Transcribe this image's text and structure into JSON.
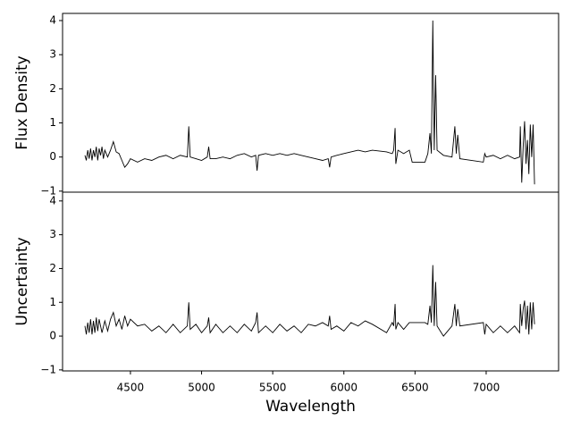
{
  "chart_data": [
    {
      "type": "line",
      "ylabel": "Flux Density",
      "color": "#000000",
      "xlim": [
        4023,
        7509
      ],
      "ylim": [
        -1.03,
        4.21
      ],
      "yticks": [
        {
          "value": -1,
          "label": "−1"
        },
        0,
        1,
        2,
        3,
        4
      ],
      "x": [
        4180,
        4190,
        4200,
        4210,
        4220,
        4230,
        4240,
        4250,
        4260,
        4270,
        4280,
        4290,
        4300,
        4310,
        4320,
        4340,
        4360,
        4380,
        4400,
        4420,
        4440,
        4460,
        4480,
        4500,
        4550,
        4600,
        4650,
        4700,
        4750,
        4800,
        4850,
        4900,
        4910,
        4920,
        4960,
        5000,
        5040,
        5050,
        5060,
        5100,
        5150,
        5200,
        5250,
        5300,
        5350,
        5380,
        5390,
        5400,
        5450,
        5500,
        5550,
        5600,
        5650,
        5700,
        5750,
        5800,
        5850,
        5890,
        5900,
        5910,
        5950,
        6000,
        6050,
        6100,
        6150,
        6200,
        6300,
        6340,
        6350,
        6360,
        6365,
        6380,
        6420,
        6460,
        6480,
        6570,
        6590,
        6605,
        6615,
        6625,
        6635,
        6645,
        6655,
        6700,
        6760,
        6780,
        6790,
        6800,
        6815,
        6980,
        6990,
        7000,
        7050,
        7100,
        7150,
        7200,
        7235,
        7240,
        7250,
        7260,
        7270,
        7280,
        7290,
        7300,
        7310,
        7320,
        7330,
        7340
      ],
      "values": [
        0.05,
        -0.1,
        0.2,
        -0.05,
        0.25,
        -0.1,
        0.2,
        0.0,
        0.3,
        -0.1,
        0.25,
        0.05,
        0.3,
        -0.05,
        0.2,
        0.0,
        0.2,
        0.45,
        0.15,
        0.1,
        -0.1,
        -0.3,
        -0.2,
        -0.05,
        -0.15,
        -0.05,
        -0.1,
        0.0,
        0.05,
        -0.05,
        0.05,
        0.0,
        0.9,
        0.0,
        -0.05,
        -0.1,
        0.0,
        0.3,
        -0.05,
        -0.05,
        0.0,
        -0.05,
        0.05,
        0.1,
        0.0,
        0.05,
        -0.4,
        0.05,
        0.1,
        0.05,
        0.1,
        0.05,
        0.1,
        0.05,
        0.0,
        -0.05,
        -0.1,
        -0.05,
        -0.3,
        0.0,
        0.05,
        0.1,
        0.15,
        0.2,
        0.15,
        0.2,
        0.15,
        0.1,
        0.2,
        0.85,
        -0.2,
        0.2,
        0.1,
        0.2,
        -0.15,
        -0.15,
        0.1,
        0.7,
        0.1,
        4.0,
        0.2,
        2.4,
        0.2,
        0.05,
        0.0,
        0.9,
        0.1,
        0.65,
        -0.05,
        -0.15,
        0.1,
        0.0,
        0.05,
        -0.05,
        0.05,
        -0.05,
        0.0,
        0.9,
        -0.75,
        0.3,
        1.05,
        -0.2,
        0.5,
        -0.5,
        0.95,
        0.0,
        0.95,
        -0.8
      ]
    },
    {
      "type": "line",
      "ylabel": "Uncertainty",
      "xlabel": "Wavelength",
      "color": "#000000",
      "xlim": [
        4023,
        7509
      ],
      "ylim": [
        -1.03,
        4.26
      ],
      "xticks": [
        4500,
        5000,
        5500,
        6000,
        6500,
        7000
      ],
      "yticks": [
        {
          "value": -1,
          "label": "−1"
        },
        0,
        1,
        2,
        3,
        4
      ],
      "x": [
        4180,
        4190,
        4200,
        4210,
        4220,
        4230,
        4240,
        4250,
        4260,
        4270,
        4280,
        4300,
        4320,
        4340,
        4360,
        4380,
        4400,
        4420,
        4440,
        4460,
        4480,
        4500,
        4550,
        4600,
        4650,
        4700,
        4750,
        4800,
        4850,
        4900,
        4910,
        4920,
        4960,
        5000,
        5040,
        5050,
        5060,
        5100,
        5150,
        5200,
        5250,
        5300,
        5350,
        5380,
        5390,
        5400,
        5450,
        5500,
        5550,
        5600,
        5650,
        5700,
        5750,
        5800,
        5850,
        5890,
        5900,
        5910,
        5950,
        6000,
        6050,
        6100,
        6150,
        6200,
        6300,
        6340,
        6350,
        6360,
        6365,
        6380,
        6420,
        6460,
        6480,
        6570,
        6590,
        6605,
        6615,
        6625,
        6635,
        6645,
        6655,
        6700,
        6760,
        6780,
        6790,
        6800,
        6815,
        6980,
        6990,
        7000,
        7050,
        7100,
        7150,
        7200,
        7235,
        7240,
        7250,
        7260,
        7270,
        7280,
        7290,
        7300,
        7310,
        7320,
        7330,
        7340
      ],
      "values": [
        0.3,
        0.05,
        0.4,
        0.1,
        0.5,
        0.05,
        0.45,
        0.1,
        0.55,
        0.15,
        0.5,
        0.1,
        0.45,
        0.15,
        0.5,
        0.7,
        0.3,
        0.5,
        0.2,
        0.6,
        0.3,
        0.5,
        0.3,
        0.35,
        0.15,
        0.3,
        0.1,
        0.35,
        0.1,
        0.3,
        1.0,
        0.2,
        0.35,
        0.1,
        0.3,
        0.55,
        0.1,
        0.35,
        0.1,
        0.3,
        0.1,
        0.35,
        0.15,
        0.4,
        0.7,
        0.1,
        0.3,
        0.1,
        0.35,
        0.15,
        0.3,
        0.1,
        0.35,
        0.3,
        0.4,
        0.3,
        0.6,
        0.2,
        0.3,
        0.15,
        0.4,
        0.3,
        0.45,
        0.35,
        0.1,
        0.4,
        0.3,
        0.95,
        0.2,
        0.4,
        0.2,
        0.4,
        0.4,
        0.4,
        0.35,
        0.9,
        0.4,
        2.1,
        0.3,
        1.6,
        0.3,
        0.0,
        0.3,
        0.95,
        0.3,
        0.8,
        0.3,
        0.4,
        0.05,
        0.35,
        0.1,
        0.3,
        0.1,
        0.3,
        0.1,
        0.95,
        0.3,
        0.8,
        1.05,
        0.2,
        0.9,
        0.05,
        1.0,
        0.2,
        1.0,
        0.35
      ]
    }
  ]
}
